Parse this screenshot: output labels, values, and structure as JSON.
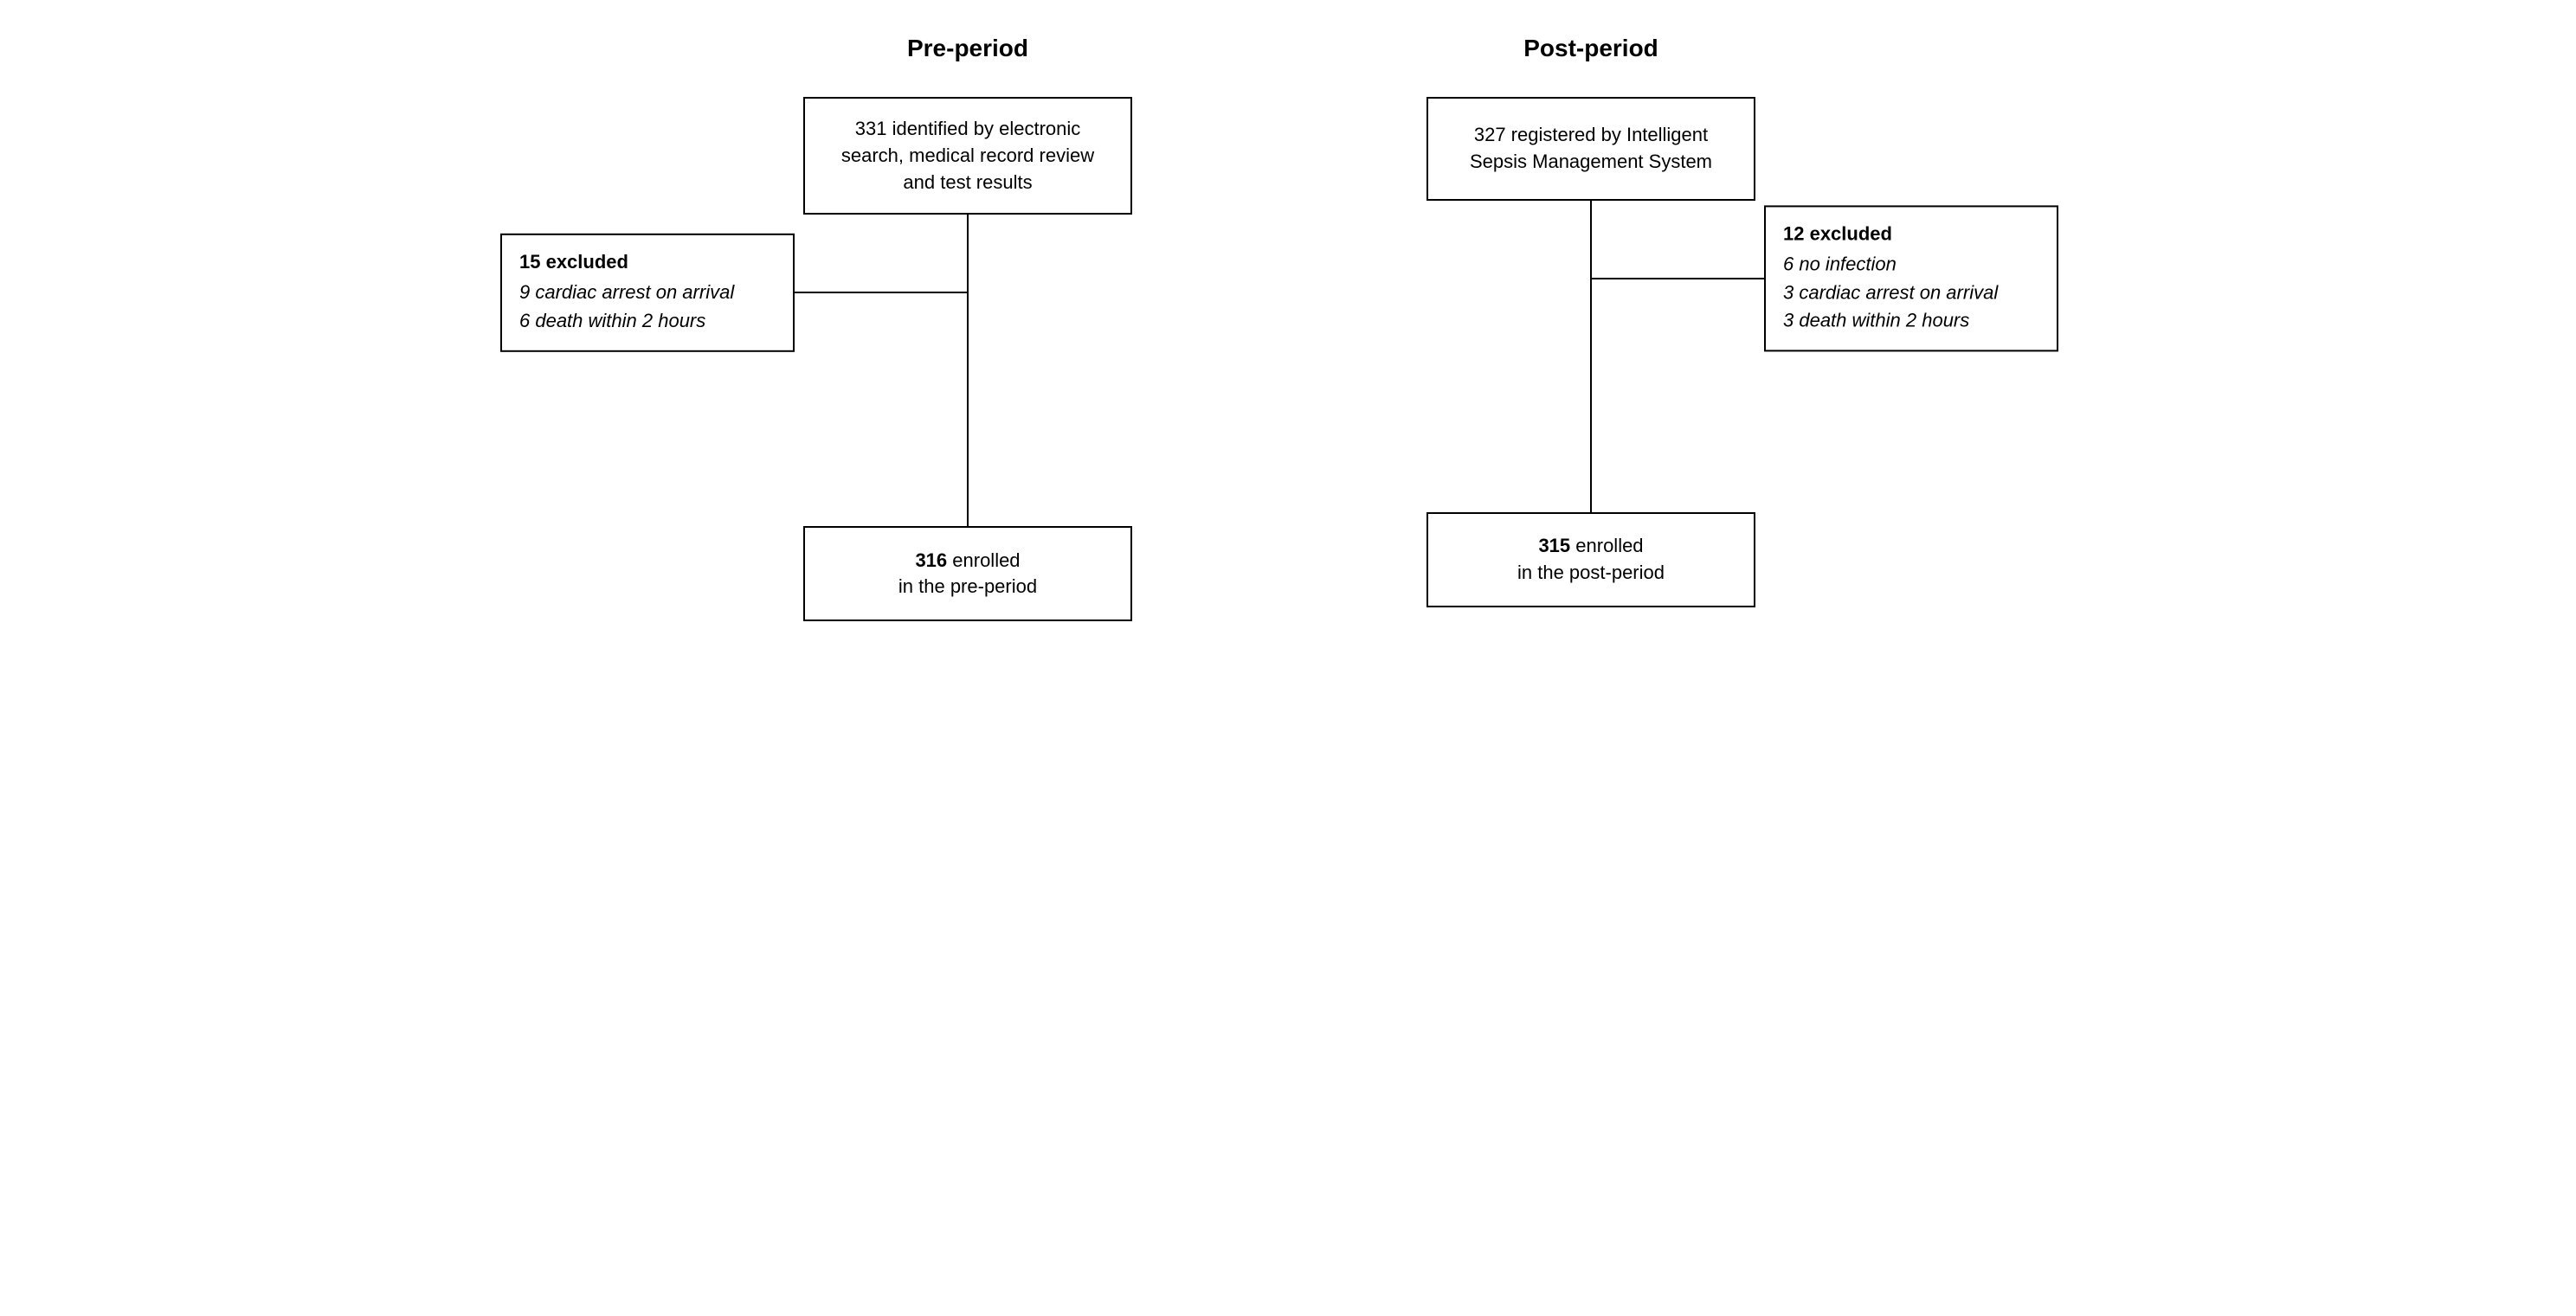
{
  "flowchart": {
    "type": "flowchart",
    "background_color": "#ffffff",
    "border_color": "#000000",
    "line_color": "#000000",
    "border_width": 2,
    "font_family": "Arial, Helvetica, sans-serif",
    "header_fontsize": 28,
    "box_fontsize": 22,
    "columns": [
      {
        "id": "pre",
        "header": "Pre-period",
        "top_box": {
          "text": "331 identified by electronic search, medical record review and test results"
        },
        "exclusion_side": "left",
        "exclusion": {
          "header": "15 excluded",
          "items": [
            "9 cardiac arrest on arrival",
            "6 death within 2 hours"
          ]
        },
        "bottom_box": {
          "bold_part": "316",
          "rest_line1": " enrolled",
          "line2": "in the pre-period"
        }
      },
      {
        "id": "post",
        "header": "Post-period",
        "top_box": {
          "text": "327 registered by Intelligent Sepsis Management System"
        },
        "exclusion_side": "right",
        "exclusion": {
          "header": "12 excluded",
          "items": [
            "6 no infection",
            "3 cardiac arrest on arrival",
            "3 death within 2 hours"
          ]
        },
        "bottom_box": {
          "bold_part": "315",
          "rest_line1": " enrolled",
          "line2": "in the post-period"
        }
      }
    ]
  }
}
